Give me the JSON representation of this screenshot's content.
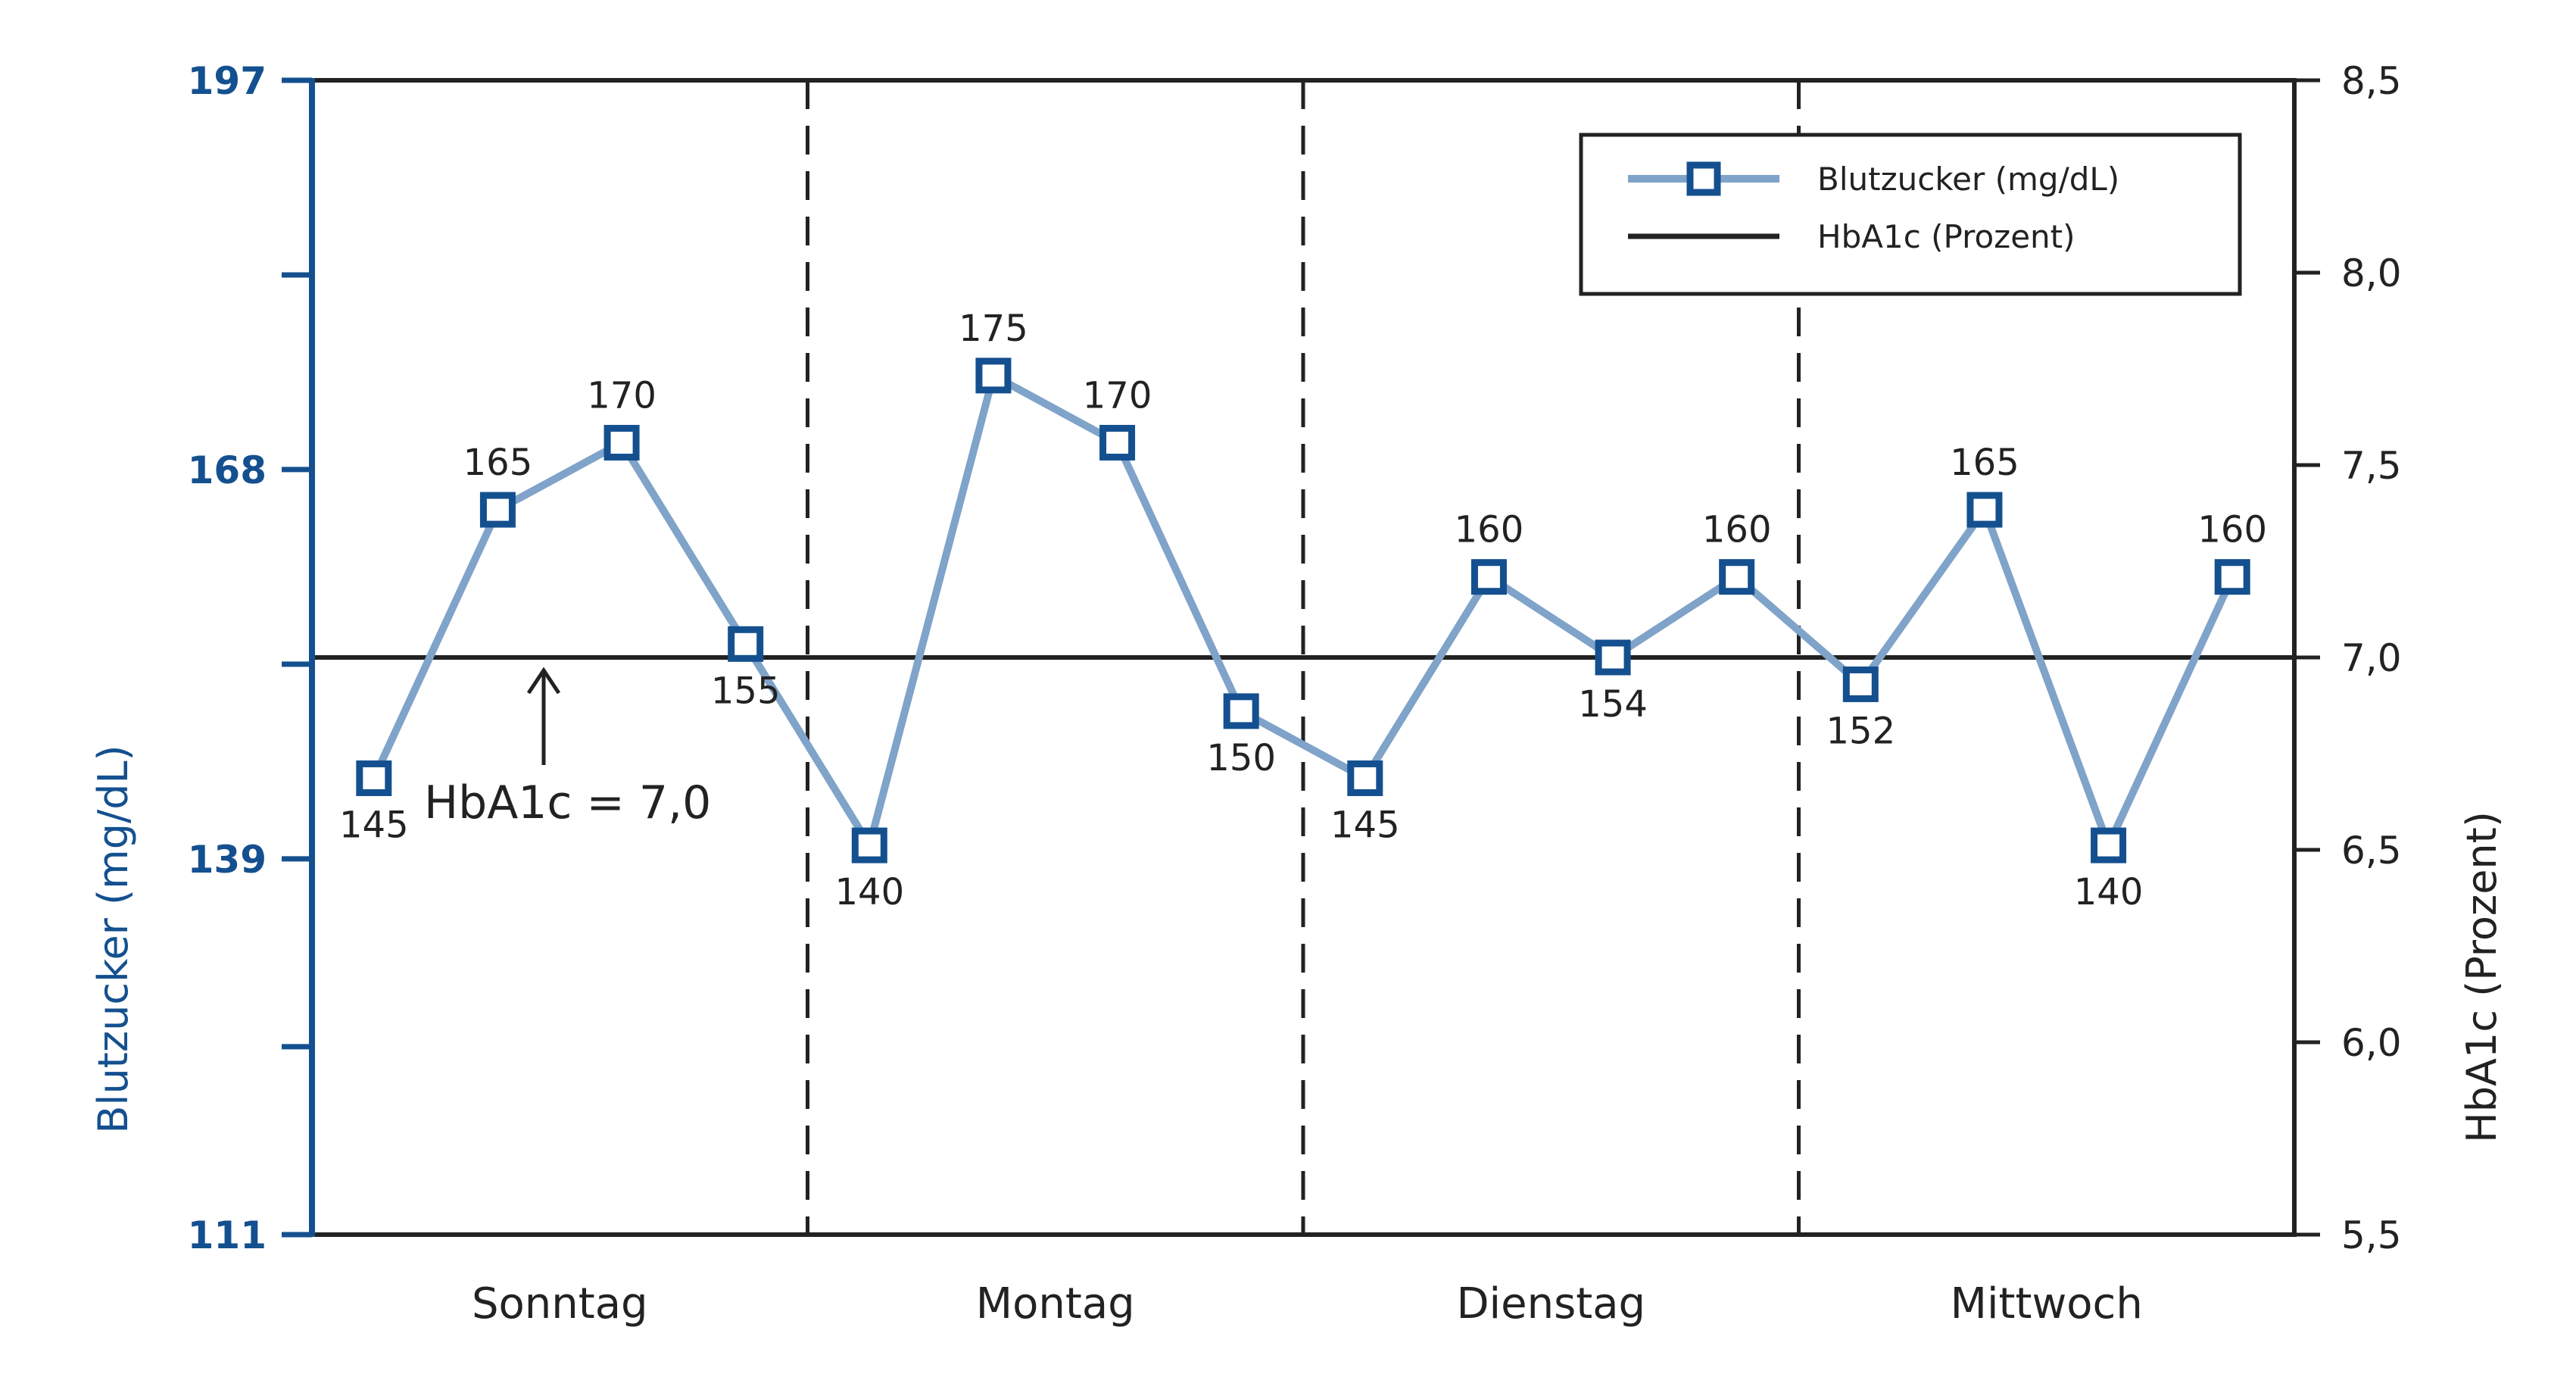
{
  "chart_data": {
    "type": "line",
    "categories": [
      "Sonntag",
      "Montag",
      "Dienstag",
      "Mittwoch"
    ],
    "ylabel_left": "Blutzucker (mg/dL)",
    "ylabel_right": "HbA1c (Prozent)",
    "left_axis": {
      "ylim": [
        111,
        197
      ],
      "tick_values": [
        111,
        139,
        168,
        197
      ],
      "tick_labels": [
        "111",
        "139",
        "168",
        "197"
      ]
    },
    "right_axis": {
      "ylim": [
        5.5,
        8.5
      ],
      "tick_values": [
        5.5,
        6.0,
        6.5,
        7.0,
        7.5,
        8.0,
        8.5
      ],
      "tick_labels": [
        "5,5",
        "6,0",
        "6,5",
        "7,0",
        "7,5",
        "8,0",
        "8,5"
      ]
    },
    "series": [
      {
        "name": "Blutzucker (mg/dL)",
        "axis": "left",
        "color": "#7fa3c9",
        "marker_color": "#14508f",
        "x": [
          0.5,
          1.5,
          2.5,
          3.5,
          4.5,
          5.5,
          6.5,
          7.5,
          8.5,
          9.5,
          10.5,
          11.5,
          12.5,
          13.5,
          14.5,
          15.5
        ],
        "values": [
          145,
          165,
          170,
          155,
          140,
          175,
          170,
          150,
          145,
          160,
          154,
          160,
          152,
          165,
          140,
          160
        ],
        "label_position": [
          "below",
          "above",
          "above",
          "below",
          "below",
          "above",
          "above",
          "below",
          "below",
          "above",
          "below",
          "above",
          "below",
          "above",
          "below",
          "above"
        ]
      },
      {
        "name": "HbA1c (Prozent)",
        "axis": "right",
        "color": "#222222",
        "value": 7.0
      }
    ],
    "annotation": {
      "text": "HbA1c = 7,0"
    },
    "legend": {
      "placement": "top-right"
    },
    "day_separators": "dashed",
    "grid": false
  }
}
